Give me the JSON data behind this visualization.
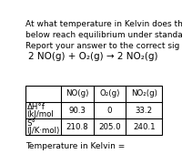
{
  "title_line1": "At what temperature in Kelvin does the reaction shown",
  "title_line2": "below reach equilibrium under standard state conditions.",
  "title_line3": "Report your answer to the correct sig figs.",
  "reaction": "2 NO(g) + O₂(g) → 2 NO₂(g)",
  "col_headers": [
    "NO(g)",
    "O₂(g)",
    "NO₂(g)"
  ],
  "row1_label_line1": "ΔH°f",
  "row1_label_line2": "(kJ/mol",
  "row2_label_line1": "S°",
  "row2_label_line2": "(J/K·mol)",
  "data": [
    [
      90.3,
      0,
      33.2
    ],
    [
      210.8,
      205.0,
      240.1
    ]
  ],
  "footer": "Temperature in Kelvin =",
  "bg_color": "#ffffff",
  "text_color": "#000000",
  "fs_title": 6.5,
  "fs_reaction": 7.5,
  "fs_table": 6.2
}
